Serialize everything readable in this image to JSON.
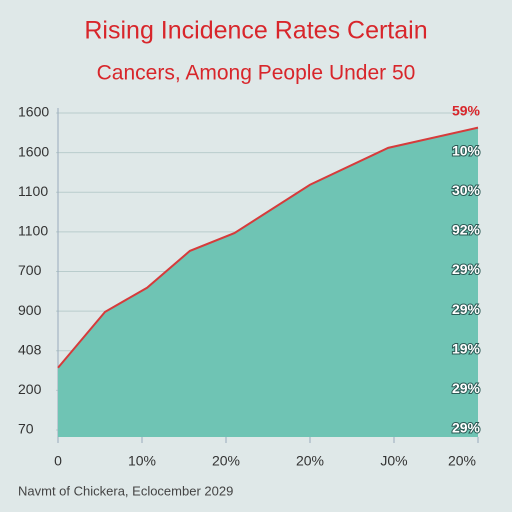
{
  "chart_data": {
    "type": "area",
    "title": "Rising Incidence Rates Certain",
    "subtitle": "Cancers, Among People Under 50",
    "footer": "Navmt of Chickera, Eclocember 2029",
    "x": [
      0,
      0.56,
      1.06,
      1.57,
      2.1,
      3.0,
      3.93,
      5
    ],
    "values": [
      1.57,
      2.98,
      3.59,
      4.52,
      4.97,
      6.19,
      7.12,
      7.63
    ],
    "color": "#6fc4b4",
    "line_color": "#d63b3b",
    "xlim": [
      0,
      5
    ],
    "ylim": [
      0,
      8
    ],
    "xticks": [
      {
        "value": 0,
        "label": "0"
      },
      {
        "value": 1,
        "label": "10%"
      },
      {
        "value": 2,
        "label": "20%"
      },
      {
        "value": 3,
        "label": "20%"
      },
      {
        "value": 4,
        "label": "J0%"
      },
      {
        "value": 5,
        "label": "20%"
      }
    ],
    "yticks": [
      {
        "value": 0,
        "label": "70"
      },
      {
        "value": 1,
        "label": "200"
      },
      {
        "value": 2,
        "label": "408"
      },
      {
        "value": 3,
        "label": "900"
      },
      {
        "value": 4,
        "label": "700"
      },
      {
        "value": 5,
        "label": "1100"
      },
      {
        "value": 6,
        "label": "1100"
      },
      {
        "value": 7,
        "label": "1600"
      },
      {
        "value": 8,
        "label": "1600"
      }
    ],
    "annotations": [
      "59%",
      "10%",
      "30%",
      "92%",
      "29%",
      "29%",
      "19%",
      "29%",
      "29%"
    ],
    "grid": true
  }
}
